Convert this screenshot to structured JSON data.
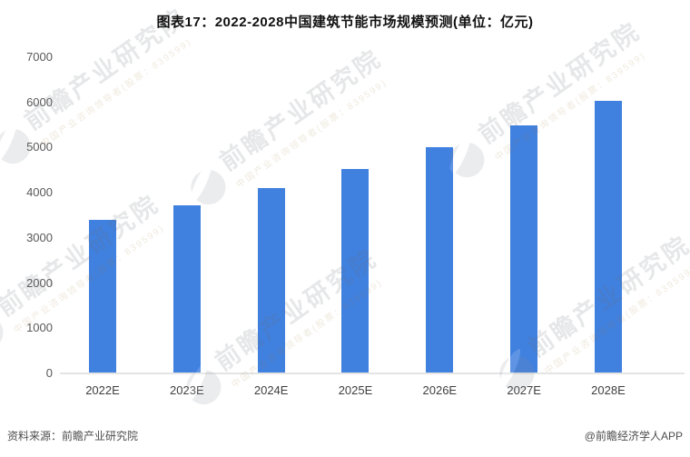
{
  "title": "图表17：2022-2028中国建筑节能市场规模预测(单位：亿元)",
  "chart_data": {
    "type": "bar",
    "categories": [
      "2022E",
      "2023E",
      "2024E",
      "2025E",
      "2026E",
      "2027E",
      "2028E"
    ],
    "values": [
      3400,
      3730,
      4100,
      4520,
      5000,
      5500,
      6030
    ],
    "title": "图表17：2022-2028中国建筑节能市场规模预测(单位：亿元)",
    "xlabel": "",
    "ylabel": "",
    "unit": "亿元",
    "ylim": [
      0,
      7000
    ],
    "yticks": [
      0,
      1000,
      2000,
      3000,
      4000,
      5000,
      6000,
      7000
    ],
    "grid": false,
    "legend_position": "none",
    "bar_color": "#4080df"
  },
  "colors": {
    "bar": "#4080df",
    "axis_line": "#e4e4e4",
    "y_tick_text": "#595959",
    "x_tick_text": "#3f3f3f",
    "title_text": "#111111",
    "footer_text": "#4d4d4d"
  },
  "footer": {
    "source": "资料来源：前瞻产业研究院",
    "credit": "@前瞻经济学人APP"
  },
  "watermark": {
    "brand_text": "前瞻产业研究院",
    "tagline_text": "中国产业咨询领导者(股票：839599)",
    "logo": "qianzhan-logo"
  }
}
